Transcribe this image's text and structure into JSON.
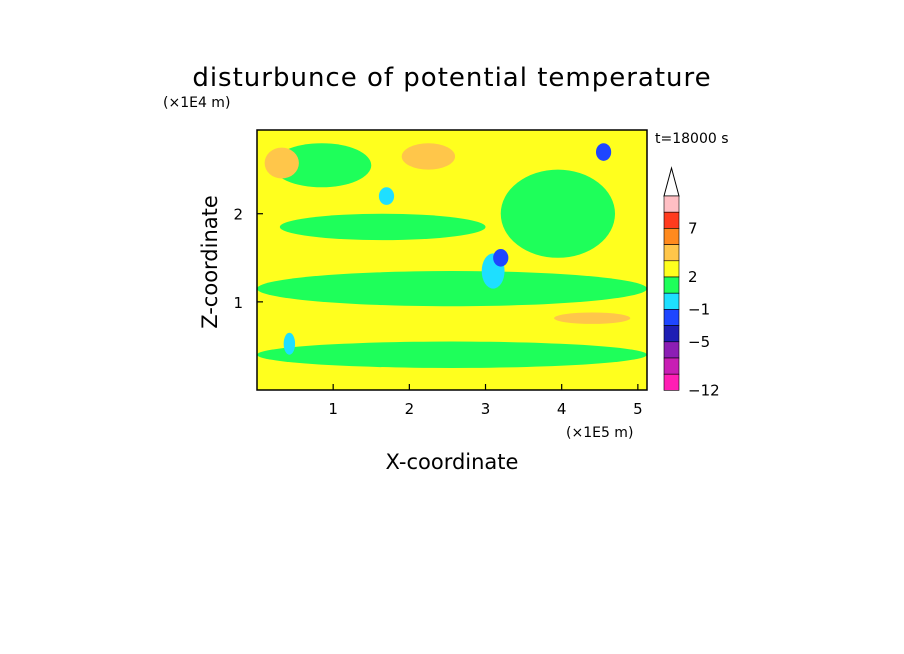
{
  "chart_data": {
    "type": "heatmap",
    "title": "disturbunce of potential temperature",
    "xlabel": "X-coordinate",
    "ylabel": "Z-coordinate",
    "x_scale_label": "(×1E5 m)",
    "y_scale_label": "(×1E4 m)",
    "time_label": "t=18000 s",
    "xlim": [
      0,
      5.12
    ],
    "ylim": [
      0,
      2.95
    ],
    "x_ticks": [
      1,
      2,
      3,
      4,
      5
    ],
    "x_tick_labels": [
      "1",
      "2",
      "3",
      "4",
      "5"
    ],
    "y_ticks": [
      1,
      2
    ],
    "y_tick_labels": [
      "1",
      "2"
    ],
    "colorbar": {
      "labeled_values": [
        "7",
        "2",
        "−1",
        "−5",
        "−12"
      ],
      "colors_top_to_bottom": [
        "#ffbfc4",
        "#ff3b1e",
        "#ff8a1e",
        "#ffc64a",
        "#ffff1e",
        "#1eff5a",
        "#1edfff",
        "#1e46ff",
        "#1e1eb4",
        "#8c1eb4",
        "#c81eb4",
        "#ff1eb4"
      ]
    },
    "field_regions": [
      {
        "value": 0.5,
        "color": "#ffff1e",
        "x": [
          0,
          5.12
        ],
        "z": [
          0,
          2.95
        ]
      },
      {
        "value": -0.5,
        "color": "#1eff5a",
        "x": [
          0,
          5.12
        ],
        "z": [
          0.95,
          1.35
        ]
      },
      {
        "value": -0.5,
        "color": "#1eff5a",
        "x": [
          0,
          5.12
        ],
        "z": [
          0.25,
          0.55
        ]
      },
      {
        "value": -0.5,
        "color": "#1eff5a",
        "x": [
          0.3,
          3.0
        ],
        "z": [
          1.7,
          2.0
        ]
      },
      {
        "value": -0.5,
        "color": "#1eff5a",
        "x": [
          3.2,
          4.7
        ],
        "z": [
          1.5,
          2.5
        ]
      },
      {
        "value": -0.5,
        "color": "#1eff5a",
        "x": [
          0.2,
          1.5
        ],
        "z": [
          2.3,
          2.8
        ]
      },
      {
        "value": 1.5,
        "color": "#ffc64a",
        "x": [
          0.1,
          0.55
        ],
        "z": [
          2.4,
          2.75
        ]
      },
      {
        "value": 1.5,
        "color": "#ffc64a",
        "x": [
          3.9,
          4.9
        ],
        "z": [
          0.75,
          0.88
        ]
      },
      {
        "value": 1.5,
        "color": "#ffc64a",
        "x": [
          1.9,
          2.6
        ],
        "z": [
          2.5,
          2.8
        ]
      },
      {
        "value": -2.0,
        "color": "#1edfff",
        "x": [
          2.95,
          3.25
        ],
        "z": [
          1.15,
          1.55
        ]
      },
      {
        "value": -4.0,
        "color": "#1e46ff",
        "x": [
          3.1,
          3.3
        ],
        "z": [
          1.4,
          1.6
        ]
      },
      {
        "value": -4.0,
        "color": "#1e46ff",
        "x": [
          4.45,
          4.65
        ],
        "z": [
          2.6,
          2.8
        ]
      },
      {
        "value": -2.0,
        "color": "#1edfff",
        "x": [
          0.35,
          0.5
        ],
        "z": [
          0.4,
          0.65
        ]
      },
      {
        "value": -2.0,
        "color": "#1edfff",
        "x": [
          1.6,
          1.8
        ],
        "z": [
          2.1,
          2.3
        ]
      }
    ]
  }
}
